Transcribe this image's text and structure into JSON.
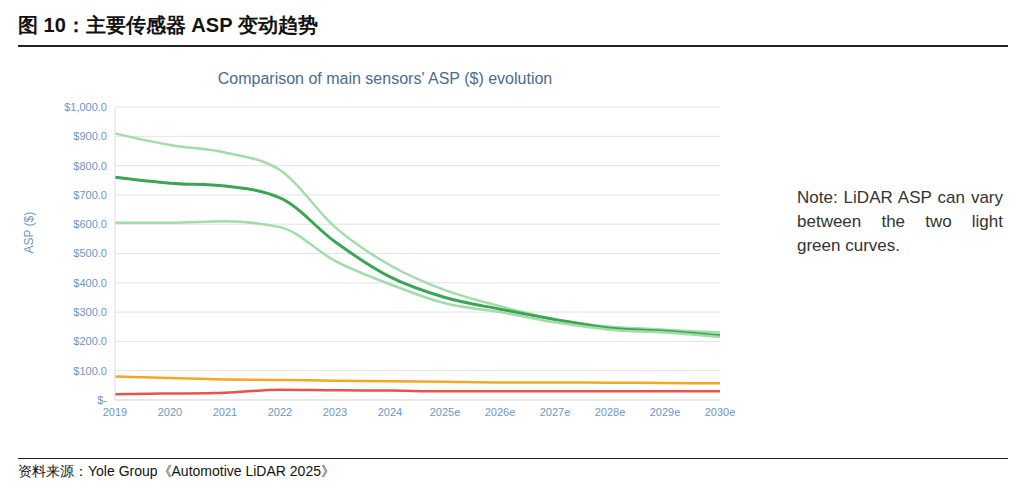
{
  "figure_title": "图 10：主要传感器 ASP 变动趋势",
  "source": "资料来源：Yole Group《Automotive LiDAR 2025》",
  "chart_data": {
    "type": "line",
    "title": "Comparison of main sensors' ASP ($) evolution",
    "y_label": "ASP ($)",
    "annotations": [
      "Note: LiDAR ASP can vary between the two light green curves."
    ],
    "categories": [
      "2019",
      "2020",
      "2021",
      "2022",
      "2023",
      "2024",
      "2025e",
      "2026e",
      "2027e",
      "2028e",
      "2029e",
      "2030e"
    ],
    "series": [
      {
        "color": "#a3dba9",
        "values": [
          910,
          870,
          845,
          785,
          590,
          460,
          375,
          320,
          275,
          250,
          240,
          230
        ]
      },
      {
        "color": "#3aa655",
        "values": [
          760,
          740,
          730,
          690,
          540,
          420,
          350,
          310,
          275,
          245,
          235,
          220
        ]
      },
      {
        "color": "#a3dba9",
        "values": [
          605,
          605,
          610,
          590,
          475,
          395,
          330,
          300,
          265,
          240,
          230,
          215
        ]
      },
      {
        "color": "#f5a623",
        "values": [
          80,
          75,
          70,
          68,
          66,
          64,
          62,
          60,
          60,
          59,
          58,
          57
        ]
      },
      {
        "color": "#e8534a",
        "values": [
          20,
          22,
          25,
          35,
          33,
          32,
          30,
          30,
          30,
          30,
          30,
          30
        ]
      }
    ],
    "ylim": [
      0,
      1000
    ],
    "yticks": [
      {
        "value": 0,
        "label": "$-"
      },
      {
        "value": 100,
        "label": "$100.0"
      },
      {
        "value": 200,
        "label": "$200.0"
      },
      {
        "value": 300,
        "label": "$300.0"
      },
      {
        "value": 400,
        "label": "$400.0"
      },
      {
        "value": 500,
        "label": "$500.0"
      },
      {
        "value": 600,
        "label": "$600.0"
      },
      {
        "value": 700,
        "label": "$700.0"
      },
      {
        "value": 800,
        "label": "$800.0"
      },
      {
        "value": 900,
        "label": "$900.0"
      },
      {
        "value": 1000,
        "label": "$1,000.0"
      }
    ],
    "grid": true
  }
}
